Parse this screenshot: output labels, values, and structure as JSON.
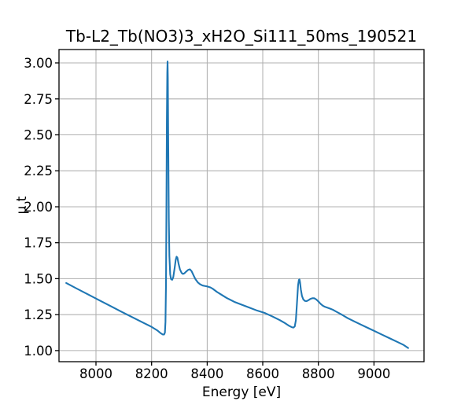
{
  "chart_data": {
    "type": "line",
    "title": "Tb-L2_Tb(NO3)3_xH2O_Si111_50ms_190521",
    "xlabel": "Energy [eV]",
    "ylabel": "μ t",
    "xlim": [
      7867,
      9180
    ],
    "ylim": [
      0.923,
      3.093
    ],
    "x_ticks": [
      8000,
      8200,
      8400,
      8600,
      8800,
      9000
    ],
    "x_tick_labels": [
      "8000",
      "8200",
      "8400",
      "8600",
      "8800",
      "9000"
    ],
    "y_ticks": [
      1.0,
      1.25,
      1.5,
      1.75,
      2.0,
      2.25,
      2.5,
      2.75,
      3.0
    ],
    "y_tick_labels": [
      "1.00",
      "1.25",
      "1.50",
      "1.75",
      "2.00",
      "2.25",
      "2.50",
      "2.75",
      "3.00"
    ],
    "grid": true,
    "legend": "none",
    "line_color": "#1f77b4",
    "grid_color": "#b0b0b0",
    "axis_color": "#000000",
    "background_color": "#ffffff",
    "series": [
      {
        "points": [
          [
            7893,
            1.47
          ],
          [
            7930,
            1.432
          ],
          [
            7970,
            1.392
          ],
          [
            8010,
            1.352
          ],
          [
            8050,
            1.312
          ],
          [
            8090,
            1.272
          ],
          [
            8130,
            1.233
          ],
          [
            8170,
            1.194
          ],
          [
            8200,
            1.165
          ],
          [
            8220,
            1.141
          ],
          [
            8232,
            1.122
          ],
          [
            8240,
            1.112
          ],
          [
            8245,
            1.112
          ],
          [
            8248,
            1.125
          ],
          [
            8250,
            1.2
          ],
          [
            8252,
            1.48
          ],
          [
            8253.5,
            2.0
          ],
          [
            8255,
            2.6
          ],
          [
            8256.5,
            2.93
          ],
          [
            8257.5,
            3.01
          ],
          [
            8258.5,
            2.9
          ],
          [
            8260,
            2.45
          ],
          [
            8262,
            1.92
          ],
          [
            8264,
            1.66
          ],
          [
            8267,
            1.53
          ],
          [
            8270,
            1.497
          ],
          [
            8274,
            1.492
          ],
          [
            8278,
            1.51
          ],
          [
            8283,
            1.575
          ],
          [
            8287,
            1.632
          ],
          [
            8290,
            1.653
          ],
          [
            8293,
            1.645
          ],
          [
            8297,
            1.605
          ],
          [
            8302,
            1.565
          ],
          [
            8308,
            1.54
          ],
          [
            8313,
            1.533
          ],
          [
            8318,
            1.537
          ],
          [
            8325,
            1.55
          ],
          [
            8332,
            1.562
          ],
          [
            8338,
            1.565
          ],
          [
            8344,
            1.552
          ],
          [
            8351,
            1.523
          ],
          [
            8358,
            1.496
          ],
          [
            8366,
            1.475
          ],
          [
            8374,
            1.462
          ],
          [
            8383,
            1.453
          ],
          [
            8392,
            1.449
          ],
          [
            8401,
            1.446
          ],
          [
            8412,
            1.439
          ],
          [
            8420,
            1.43
          ],
          [
            8435,
            1.408
          ],
          [
            8450,
            1.39
          ],
          [
            8470,
            1.366
          ],
          [
            8500,
            1.337
          ],
          [
            8523,
            1.32
          ],
          [
            8550,
            1.3
          ],
          [
            8580,
            1.278
          ],
          [
            8608,
            1.261
          ],
          [
            8635,
            1.237
          ],
          [
            8660,
            1.213
          ],
          [
            8680,
            1.191
          ],
          [
            8695,
            1.172
          ],
          [
            8704,
            1.163
          ],
          [
            8710,
            1.16
          ],
          [
            8715,
            1.168
          ],
          [
            8719,
            1.21
          ],
          [
            8723,
            1.33
          ],
          [
            8727,
            1.455
          ],
          [
            8730,
            1.492
          ],
          [
            8732,
            1.495
          ],
          [
            8734,
            1.475
          ],
          [
            8737,
            1.425
          ],
          [
            8741,
            1.38
          ],
          [
            8746,
            1.355
          ],
          [
            8752,
            1.345
          ],
          [
            8758,
            1.344
          ],
          [
            8764,
            1.35
          ],
          [
            8771,
            1.359
          ],
          [
            8778,
            1.364
          ],
          [
            8785,
            1.364
          ],
          [
            8792,
            1.356
          ],
          [
            8800,
            1.342
          ],
          [
            8808,
            1.325
          ],
          [
            8816,
            1.312
          ],
          [
            8824,
            1.304
          ],
          [
            8833,
            1.298
          ],
          [
            8842,
            1.292
          ],
          [
            8852,
            1.284
          ],
          [
            8865,
            1.27
          ],
          [
            8885,
            1.249
          ],
          [
            8905,
            1.226
          ],
          [
            8930,
            1.202
          ],
          [
            8955,
            1.179
          ],
          [
            8980,
            1.156
          ],
          [
            9005,
            1.133
          ],
          [
            9030,
            1.11
          ],
          [
            9055,
            1.087
          ],
          [
            9080,
            1.064
          ],
          [
            9105,
            1.041
          ],
          [
            9123,
            1.018
          ]
        ]
      }
    ]
  }
}
